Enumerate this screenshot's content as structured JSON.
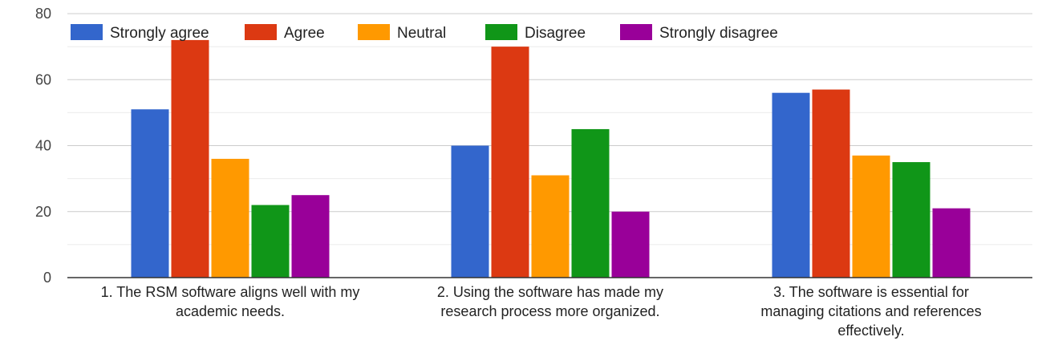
{
  "chart_data": {
    "type": "bar",
    "categories": [
      [
        "1. The RSM software aligns well with my",
        "academic needs."
      ],
      [
        "2. Using the software has made my",
        "research process more organized."
      ],
      [
        "3. The software is essential for",
        "managing citations and references",
        "effectively."
      ]
    ],
    "series": [
      {
        "name": "Strongly agree",
        "color": "#3366cc",
        "values": [
          51,
          40,
          56
        ]
      },
      {
        "name": "Agree",
        "color": "#dc3912",
        "values": [
          72,
          70,
          57
        ]
      },
      {
        "name": "Neutral",
        "color": "#ff9900",
        "values": [
          36,
          31,
          37
        ]
      },
      {
        "name": "Disagree",
        "color": "#109618",
        "values": [
          22,
          45,
          35
        ]
      },
      {
        "name": "Strongly disagree",
        "color": "#990099",
        "values": [
          25,
          20,
          21
        ]
      }
    ],
    "ylim": [
      0,
      80
    ],
    "yticks": [
      0,
      20,
      40,
      60,
      80
    ],
    "minor_gridlines": true,
    "legend_position": "top-left",
    "title": "",
    "xlabel": "",
    "ylabel": ""
  }
}
